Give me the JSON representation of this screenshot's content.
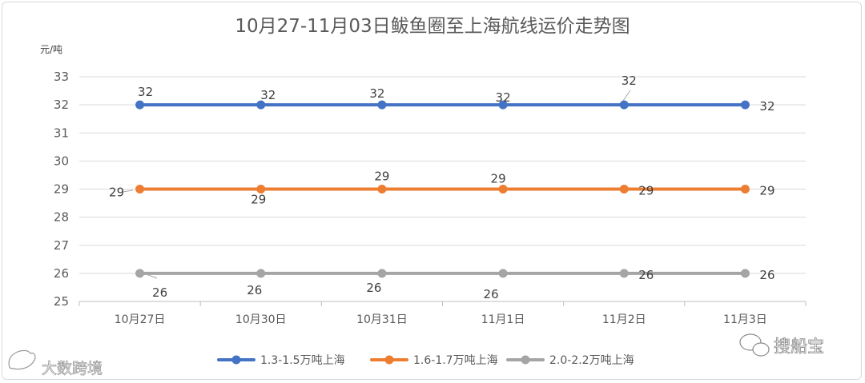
{
  "chart_data": {
    "type": "line",
    "title": "10月27-11月03日鲅鱼圈至上海航线运价走势图",
    "yunit": "元/吨",
    "xlabel": "",
    "ylabel": "",
    "ylim": [
      25,
      33
    ],
    "ytick_step": 1,
    "grid": true,
    "legend": "bottom",
    "categories": [
      "10月27日",
      "10月30日",
      "10月31日",
      "11月1日",
      "11月2日",
      "11月3日"
    ],
    "series": [
      {
        "name": "1.3-1.5万吨上海",
        "color": "#4472c4",
        "values": [
          32,
          32,
          32,
          32,
          32,
          32
        ],
        "labels": [
          "32",
          "32",
          "32",
          "32",
          "32",
          "32"
        ]
      },
      {
        "name": "1.6-1.7万吨上海",
        "color": "#ed7d31",
        "values": [
          29,
          29,
          29,
          29,
          29,
          29
        ],
        "labels": [
          "29",
          "29",
          "29",
          "29",
          "29",
          "29"
        ]
      },
      {
        "name": "2.0-2.2万吨上海",
        "color": "#a5a5a5",
        "values": [
          26,
          26,
          26,
          26,
          26,
          26
        ],
        "labels": [
          "26",
          "26",
          "26",
          "26",
          "26",
          "26"
        ]
      }
    ]
  },
  "watermarks": {
    "left": "大数跨境",
    "right": "搜船宝"
  }
}
